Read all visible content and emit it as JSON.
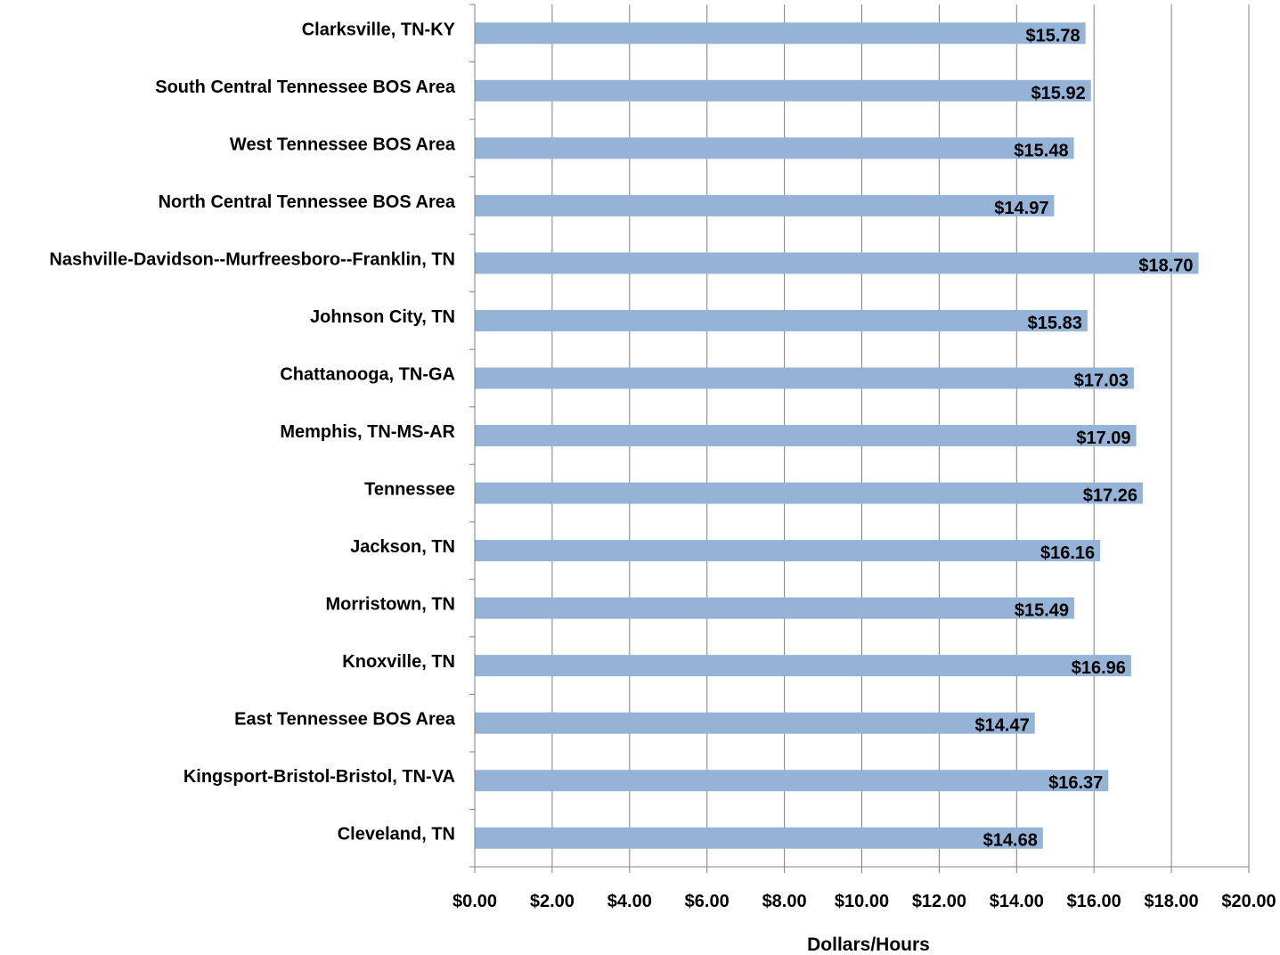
{
  "chart_data": {
    "type": "bar",
    "orientation": "horizontal",
    "categories": [
      "Clarksville, TN-KY",
      "South Central Tennessee BOS Area",
      "West Tennessee BOS Area",
      "North Central Tennessee BOS Area",
      "Nashville-Davidson--Murfreesboro--Franklin, TN",
      "Johnson City, TN",
      "Chattanooga, TN-GA",
      "Memphis, TN-MS-AR",
      "Tennessee",
      "Jackson, TN",
      "Morristown, TN",
      "Knoxville, TN",
      "East Tennessee BOS Area",
      "Kingsport-Bristol-Bristol, TN-VA",
      "Cleveland, TN"
    ],
    "values": [
      15.78,
      15.92,
      15.48,
      14.97,
      18.7,
      15.83,
      17.03,
      17.09,
      17.26,
      16.16,
      15.49,
      16.96,
      14.47,
      16.37,
      14.68
    ],
    "data_labels": [
      "$15.78",
      "$15.92",
      "$15.48",
      "$14.97",
      "$18.70",
      "$15.83",
      "$17.03",
      "$17.09",
      "$17.26",
      "$16.16",
      "$15.49",
      "$16.96",
      "$14.47",
      "$16.37",
      "$14.68"
    ],
    "xlabel": "Dollars/Hours",
    "ylabel": "",
    "xlim": [
      0,
      20
    ],
    "x_ticks": [
      0,
      2,
      4,
      6,
      8,
      10,
      12,
      14,
      16,
      18,
      20
    ],
    "x_tick_labels": [
      "$0.00",
      "$2.00",
      "$4.00",
      "$6.00",
      "$8.00",
      "$10.00",
      "$12.00",
      "$14.00",
      "$16.00",
      "$18.00",
      "$20.00"
    ],
    "grid": "vertical",
    "legend": "none",
    "colors": {
      "bar": "#95b3d7",
      "grid": "#808080",
      "axis": "#808080"
    }
  }
}
